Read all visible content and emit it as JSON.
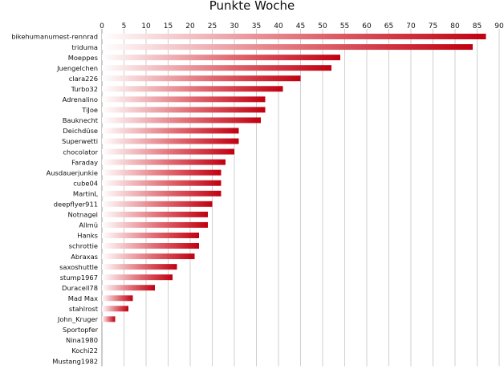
{
  "chart_data": {
    "type": "bar",
    "orientation": "horizontal",
    "title": "Punkte Woche",
    "xlabel": "",
    "ylabel": "",
    "xlim": [
      0,
      90
    ],
    "xticks": [
      0,
      5,
      10,
      15,
      20,
      25,
      30,
      35,
      40,
      45,
      50,
      55,
      60,
      65,
      70,
      75,
      80,
      85,
      90
    ],
    "tick_position": "top",
    "grid": true,
    "legend": "none",
    "bar_style": "gradient fading from white on the left to red on the right",
    "bar_color": "#c00010",
    "categories": [
      "bikehumanumest-rennrad",
      "triduma",
      "Moeppes",
      "Juengelchen",
      "clara226",
      "Turbo32",
      "Adrenalino",
      "TiJoe",
      "Bauknecht",
      "Deichdüse",
      "Superwetti",
      "chocolator",
      "Faraday",
      "Ausdauerjunkie",
      "cube04",
      "MartinL",
      "deepflyer911",
      "Notnagel",
      "Allmü",
      "Hanks",
      "schrottie",
      "Abraxas",
      "saxoshuttle",
      "stump1967",
      "Duracell78",
      "Mad Max",
      "stahlrost",
      "John_Kruger",
      "Sportopfer",
      "Nina1980",
      "Kochi22",
      "Mustang1982"
    ],
    "values": [
      87,
      84,
      54,
      52,
      45,
      41,
      37,
      37,
      36,
      31,
      31,
      30,
      28,
      27,
      27,
      27,
      25,
      24,
      24,
      22,
      22,
      21,
      17,
      16,
      12,
      7,
      6,
      3,
      0,
      0,
      0,
      0
    ]
  }
}
